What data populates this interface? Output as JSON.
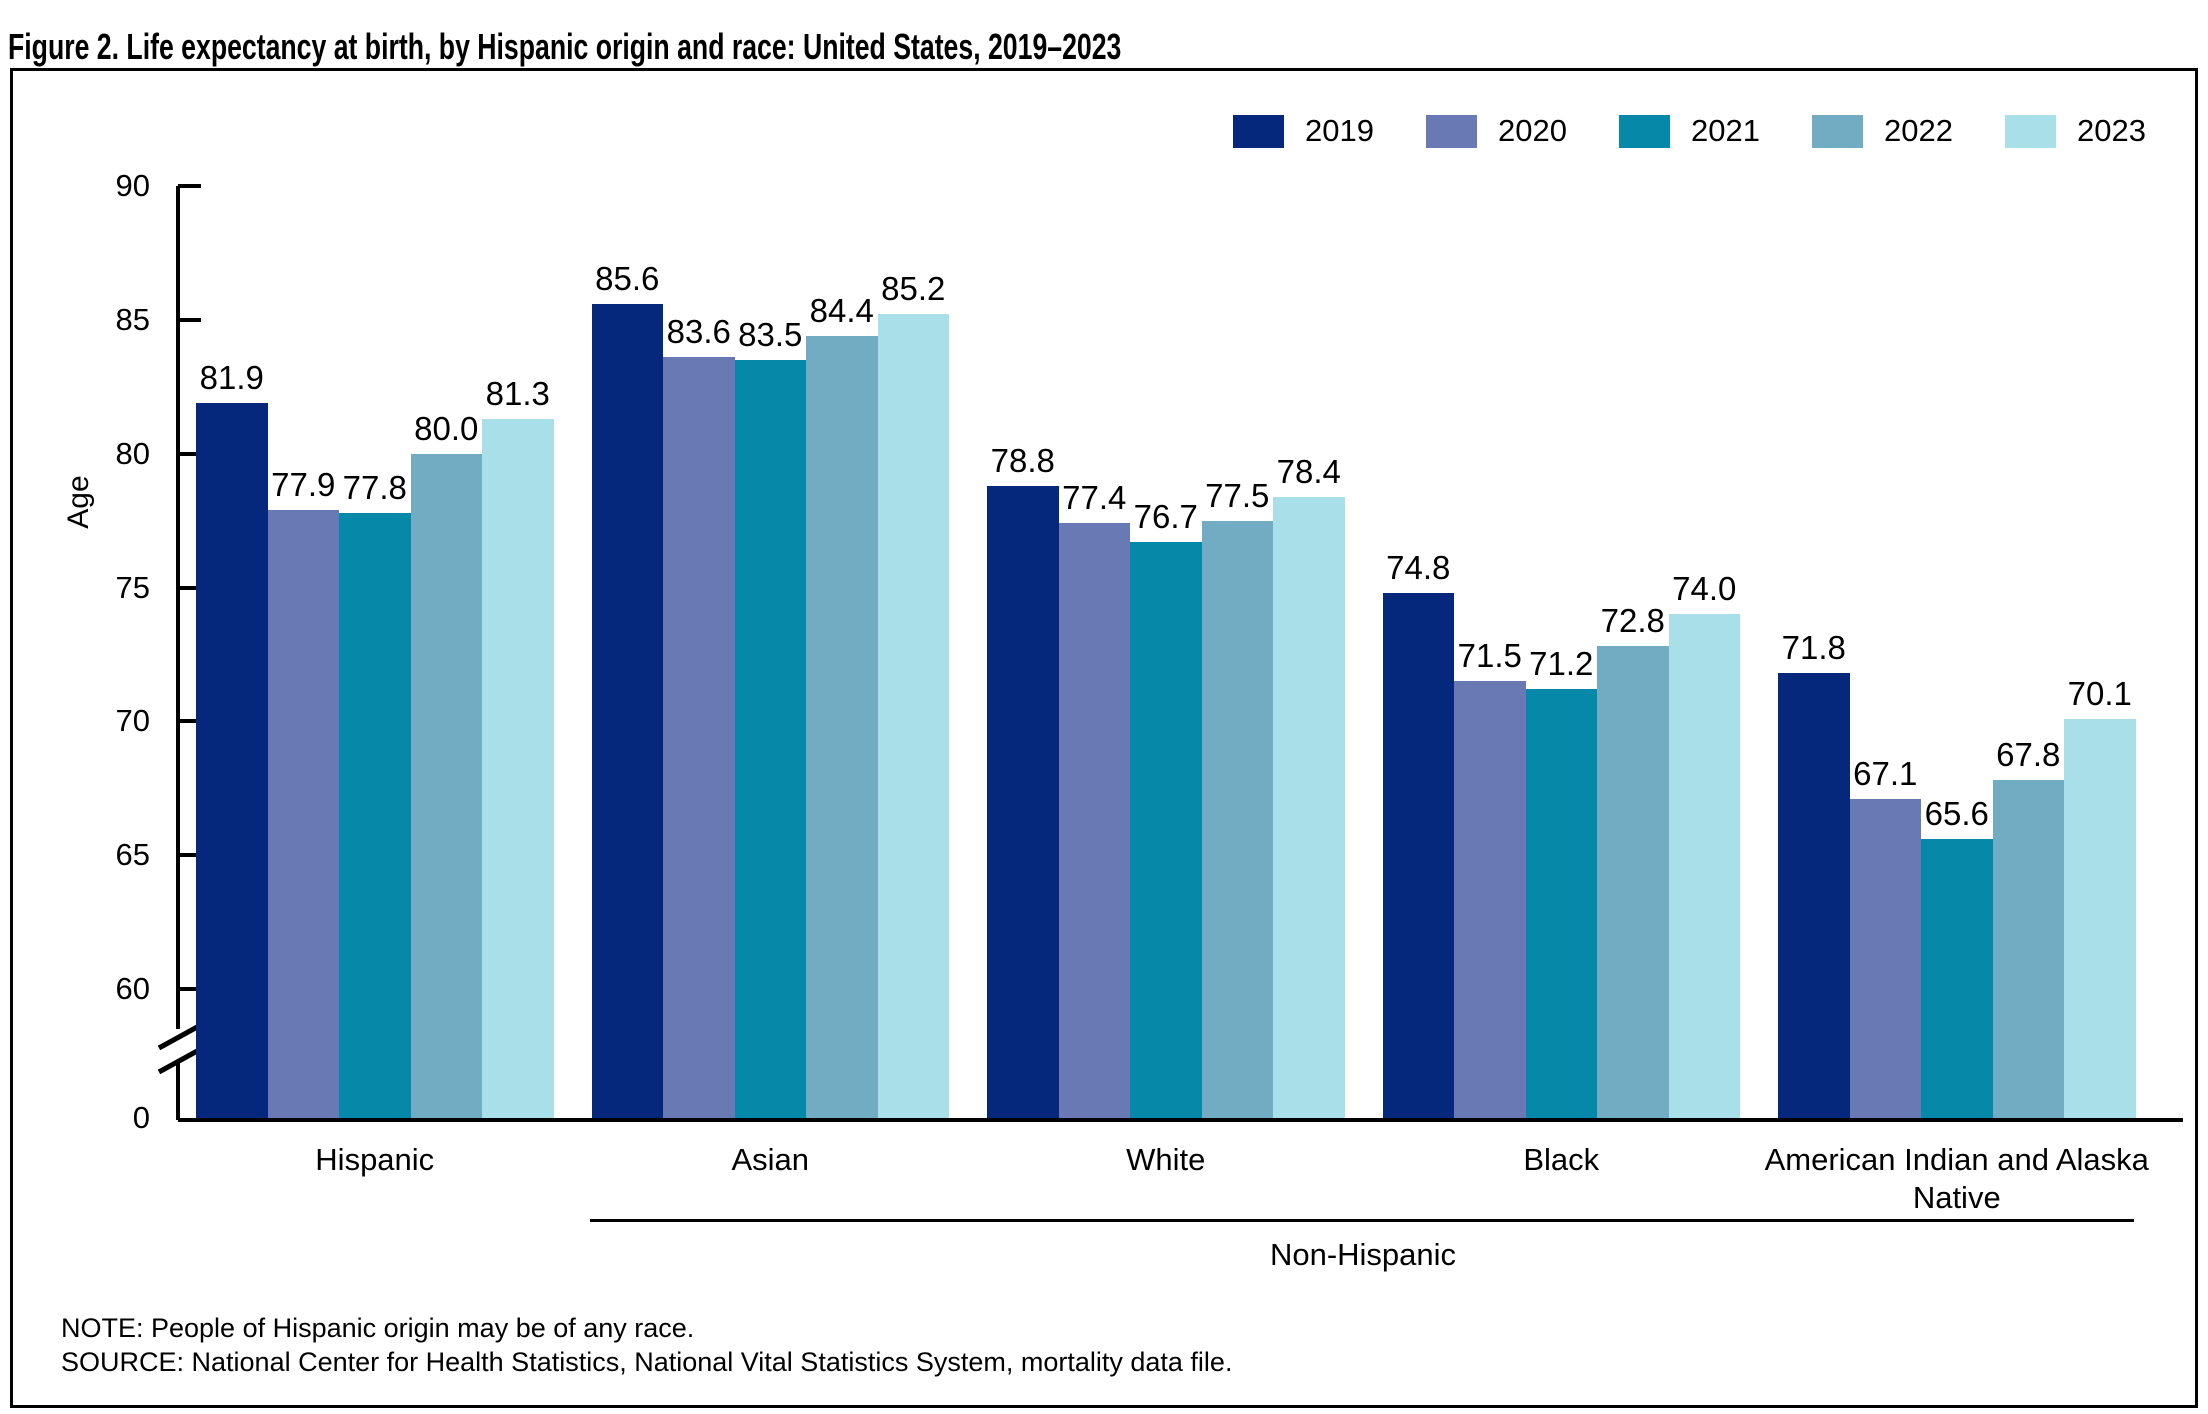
{
  "title": "Figure 2. Life expectancy at birth, by Hispanic origin and race: United States, 2019–2023",
  "chart_data": {
    "type": "bar",
    "title": "Figure 2. Life expectancy at birth, by Hispanic origin and race: United States, 2019–2023",
    "xlabel": "",
    "ylabel": "Age",
    "categories": [
      "Hispanic",
      "Asian",
      "White",
      "Black",
      "American Indian and Alaska Native"
    ],
    "series": [
      {
        "name": "2019",
        "color": "#05287d",
        "values": [
          81.9,
          85.6,
          78.8,
          74.8,
          71.8
        ]
      },
      {
        "name": "2020",
        "color": "#6879b4",
        "values": [
          77.9,
          83.6,
          77.4,
          71.5,
          67.1
        ]
      },
      {
        "name": "2021",
        "color": "#0689a8",
        "values": [
          77.8,
          83.5,
          76.7,
          71.2,
          65.6
        ]
      },
      {
        "name": "2022",
        "color": "#72acc3",
        "values": [
          80.0,
          84.4,
          77.5,
          72.8,
          67.8
        ]
      },
      {
        "name": "2023",
        "color": "#a8dfe8",
        "values": [
          81.3,
          85.2,
          78.4,
          74.0,
          70.1
        ]
      }
    ],
    "yticks": [
      90,
      85,
      80,
      75,
      70,
      65,
      60
    ],
    "origin_tick_label": "0",
    "ylim_display": [
      60,
      90
    ],
    "axis_break": true,
    "value_label_decimals": 1,
    "legend_position": "top-right",
    "grid": false,
    "group_annotation": {
      "label": "Non-Hispanic",
      "applies_to": [
        "Asian",
        "White",
        "Black",
        "American Indian and Alaska Native"
      ]
    }
  },
  "footnotes": {
    "note": "NOTE: People of Hispanic origin may be of any race.",
    "source": "SOURCE: National Center for Health Statistics, National Vital Statistics System, mortality data file."
  },
  "colors": {
    "bar_2019": "#05287d",
    "bar_2020": "#6879b4",
    "bar_2021": "#0689a8",
    "bar_2022": "#72acc3",
    "bar_2023": "#a8dfe8",
    "axis": "#000000",
    "frame_border": "#000000",
    "background": "#ffffff"
  }
}
